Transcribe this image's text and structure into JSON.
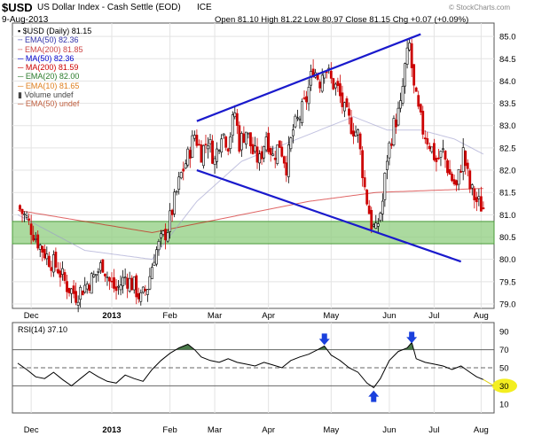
{
  "header": {
    "symbol": "$USD",
    "name": "US Dollar Index - Cash Settle (EOD)",
    "exchange": "ICE",
    "date": "9-Aug-2013",
    "ohlc": "Open 81.10  High 81.22  Low 80.97  Close 81.15  Chg +0.07 (+0.09%)",
    "watermark": "© StockCharts.com"
  },
  "legend": [
    {
      "text": "$USD (Daily) 81.15",
      "color": "#000000",
      "icon": "candle-icon"
    },
    {
      "text": "EMA(50) 82.36",
      "color": "#3333aa",
      "icon": "dotted-line-icon"
    },
    {
      "text": "EMA(200) 81.85",
      "color": "#cc4444",
      "icon": "dotted-line-icon"
    },
    {
      "text": "MA(50) 82.36",
      "color": "#0000cc",
      "icon": "line-icon"
    },
    {
      "text": "MA(200) 81.59",
      "color": "#cc0000",
      "icon": "line-icon"
    },
    {
      "text": "EMA(20) 82.00",
      "color": "#2a7a2a",
      "icon": "line-icon"
    },
    {
      "text": "EMA(10) 81.65",
      "color": "#e08020",
      "icon": "line-icon"
    },
    {
      "text": "Volume undef",
      "color": "#444444",
      "icon": "bar-icon"
    },
    {
      "text": "EMA(50) undef",
      "color": "#c06040",
      "icon": "line-icon"
    }
  ],
  "rsi_label": "RSI(14) 37.10",
  "chart_data": [
    {
      "type": "candlestick",
      "title": "$USD (Daily) 81.15",
      "ylim": [
        78.9,
        85.3
      ],
      "y_ticks": [
        "79.0",
        "79.5",
        "80.0",
        "80.5",
        "81.0",
        "81.5",
        "82.0",
        "82.5",
        "83.0",
        "83.5",
        "84.0",
        "84.5",
        "85.0"
      ],
      "x_labels": [
        "Dec",
        "2013",
        "Feb",
        "Mar",
        "Apr",
        "May",
        "Jun",
        "Jul",
        "Aug"
      ],
      "close_path": [
        [
          0,
          81.2
        ],
        [
          4,
          80.9
        ],
        [
          7,
          80.6
        ],
        [
          10,
          80.3
        ],
        [
          14,
          80.0
        ],
        [
          18,
          79.8
        ],
        [
          22,
          79.4
        ],
        [
          26,
          79.2
        ],
        [
          30,
          79.4
        ],
        [
          34,
          79.6
        ],
        [
          38,
          79.9
        ],
        [
          41,
          79.5
        ],
        [
          44,
          79.3
        ],
        [
          48,
          79.6
        ],
        [
          52,
          79.4
        ],
        [
          55,
          79.1
        ],
        [
          58,
          79.4
        ],
        [
          61,
          80.1
        ],
        [
          64,
          80.4
        ],
        [
          67,
          80.7
        ],
        [
          70,
          81.3
        ],
        [
          73,
          81.9
        ],
        [
          76,
          82.3
        ],
        [
          79,
          82.8
        ],
        [
          82,
          82.4
        ],
        [
          85,
          82.7
        ],
        [
          88,
          82.2
        ],
        [
          91,
          82.9
        ],
        [
          94,
          82.6
        ],
        [
          97,
          83.3
        ],
        [
          99,
          82.6
        ],
        [
          102,
          82.9
        ],
        [
          105,
          82.4
        ],
        [
          108,
          82.2
        ],
        [
          111,
          82.8
        ],
        [
          114,
          82.3
        ],
        [
          117,
          82.6
        ],
        [
          120,
          82.1
        ],
        [
          123,
          82.9
        ],
        [
          126,
          83.2
        ],
        [
          129,
          83.6
        ],
        [
          132,
          84.3
        ],
        [
          135,
          84.0
        ],
        [
          137,
          84.4
        ],
        [
          140,
          84.0
        ],
        [
          143,
          83.8
        ],
        [
          146,
          83.3
        ],
        [
          149,
          83.0
        ],
        [
          152,
          82.8
        ],
        [
          155,
          81.6
        ],
        [
          158,
          80.8
        ],
        [
          160,
          80.6
        ],
        [
          163,
          81.3
        ],
        [
          165,
          82.3
        ],
        [
          168,
          83.0
        ],
        [
          171,
          83.4
        ],
        [
          173,
          84.3
        ],
        [
          175,
          84.8
        ],
        [
          177,
          83.8
        ],
        [
          179,
          83.3
        ],
        [
          181,
          82.9
        ],
        [
          184,
          82.6
        ],
        [
          187,
          82.2
        ],
        [
          190,
          82.4
        ],
        [
          193,
          81.9
        ],
        [
          196,
          81.6
        ],
        [
          199,
          82.4
        ],
        [
          202,
          81.6
        ],
        [
          205,
          81.3
        ],
        [
          208,
          81.15
        ]
      ],
      "moving_averages": [
        {
          "name": "MA(200)",
          "color": "#cc0000",
          "path": [
            [
              0,
              81.1
            ],
            [
              60,
              80.6
            ],
            [
              90,
              80.9
            ],
            [
              130,
              81.3
            ],
            [
              160,
              81.5
            ],
            [
              208,
              81.59
            ]
          ]
        },
        {
          "name": "EMA(50)",
          "color": "#9999cc",
          "path": [
            [
              0,
              81.0
            ],
            [
              30,
              80.2
            ],
            [
              60,
              80.0
            ],
            [
              80,
              81.3
            ],
            [
              100,
              82.2
            ],
            [
              130,
              82.8
            ],
            [
              150,
              83.2
            ],
            [
              165,
              82.9
            ],
            [
              180,
              82.9
            ],
            [
              195,
              82.7
            ],
            [
              208,
              82.36
            ]
          ]
        }
      ],
      "trendlines": [
        {
          "name": "upper",
          "color": "#1a1acc",
          "points": [
            [
              80,
              83.1
            ],
            [
              180,
              85.05
            ]
          ]
        },
        {
          "name": "lower",
          "color": "#1a1acc",
          "points": [
            [
              80,
              82.0
            ],
            [
              198,
              79.95
            ]
          ]
        }
      ],
      "support_zone": {
        "low": 80.35,
        "high": 80.85,
        "color": "#8fce7f"
      }
    },
    {
      "type": "line",
      "title": "RSI(14) 37.10",
      "ylim": [
        0,
        100
      ],
      "y_ticks": [
        "10",
        "30",
        "50",
        "70",
        "90"
      ],
      "x_labels": [
        "Dec",
        "2013",
        "Feb",
        "Mar",
        "Apr",
        "May",
        "Jun",
        "Jul",
        "Aug"
      ],
      "reference_lines": [
        30,
        50,
        70
      ],
      "values": [
        [
          0,
          55
        ],
        [
          4,
          48
        ],
        [
          8,
          40
        ],
        [
          12,
          38
        ],
        [
          16,
          45
        ],
        [
          20,
          37
        ],
        [
          24,
          30
        ],
        [
          28,
          38
        ],
        [
          32,
          46
        ],
        [
          36,
          40
        ],
        [
          40,
          35
        ],
        [
          44,
          33
        ],
        [
          48,
          42
        ],
        [
          52,
          38
        ],
        [
          56,
          35
        ],
        [
          60,
          48
        ],
        [
          64,
          58
        ],
        [
          68,
          66
        ],
        [
          72,
          72
        ],
        [
          76,
          76
        ],
        [
          79,
          70
        ],
        [
          82,
          62
        ],
        [
          86,
          58
        ],
        [
          90,
          56
        ],
        [
          94,
          60
        ],
        [
          98,
          56
        ],
        [
          102,
          54
        ],
        [
          106,
          52
        ],
        [
          110,
          56
        ],
        [
          114,
          53
        ],
        [
          118,
          50
        ],
        [
          122,
          58
        ],
        [
          126,
          62
        ],
        [
          130,
          65
        ],
        [
          134,
          70
        ],
        [
          137,
          74
        ],
        [
          140,
          64
        ],
        [
          144,
          58
        ],
        [
          148,
          50
        ],
        [
          152,
          45
        ],
        [
          156,
          33
        ],
        [
          159,
          28
        ],
        [
          162,
          38
        ],
        [
          166,
          58
        ],
        [
          170,
          68
        ],
        [
          174,
          72
        ],
        [
          176,
          78
        ],
        [
          178,
          60
        ],
        [
          182,
          56
        ],
        [
          186,
          54
        ],
        [
          190,
          52
        ],
        [
          194,
          48
        ],
        [
          198,
          52
        ],
        [
          202,
          45
        ],
        [
          205,
          40
        ],
        [
          208,
          37
        ]
      ],
      "annotations": [
        {
          "type": "arrow-down",
          "at": [
            137,
            82
          ]
        },
        {
          "type": "arrow-up",
          "at": [
            159,
            18
          ]
        },
        {
          "type": "arrow-down",
          "at": [
            176,
            84
          ]
        },
        {
          "type": "highlight",
          "at": [
            208,
            30
          ],
          "text": "30"
        }
      ]
    }
  ]
}
